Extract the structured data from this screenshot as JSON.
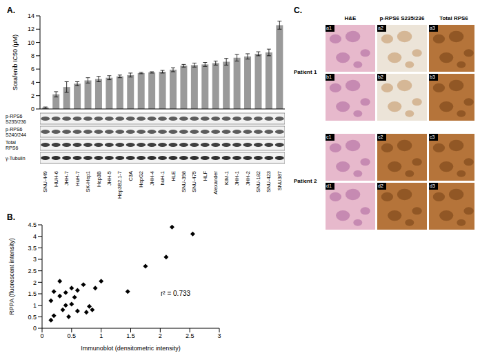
{
  "chart_data": [
    {
      "type": "bar",
      "title": "A.",
      "y_label": "Sorafenib IC50 (μM)",
      "categories": [
        "SNU-449",
        "HUH-6",
        "JHH-7",
        "HuH-7",
        "SK-Hep1",
        "Hep3B",
        "JHH-5",
        "Hep3B2.1-7",
        "C3A",
        "HepG2",
        "JHH-4",
        "huH-1",
        "HLE",
        "SNU-398",
        "SNU-475",
        "HLF",
        "Alexander",
        "KIM-1",
        "JHH-1",
        "JHH-2",
        "SNU-182",
        "SNU-423",
        "SNU387"
      ],
      "values": [
        0.2,
        2.2,
        3.3,
        3.8,
        4.3,
        4.5,
        4.7,
        4.9,
        5.1,
        5.4,
        5.5,
        5.6,
        5.9,
        6.5,
        6.6,
        6.7,
        6.9,
        7.1,
        7.7,
        7.9,
        8.3,
        8.5,
        12.6
      ],
      "errors": [
        0.1,
        0.4,
        0.8,
        0.3,
        0.4,
        0.4,
        0.3,
        0.2,
        0.3,
        0.1,
        0.1,
        0.2,
        0.3,
        0.2,
        0.3,
        0.3,
        0.3,
        0.5,
        0.5,
        0.4,
        0.3,
        0.5,
        0.6
      ],
      "color": "#9a9a9a",
      "ylim": [
        0,
        14
      ],
      "yticks": [
        0,
        2,
        4,
        6,
        8,
        10,
        12,
        14
      ],
      "grid": false
    },
    {
      "type": "scatter",
      "title": "B.",
      "x_label": "Immunoblot (densitometric intensity)",
      "y_label": "RPPA (fluorescent intensity)",
      "annotation": "r² = 0.733",
      "x": [
        0.15,
        0.15,
        0.2,
        0.2,
        0.3,
        0.3,
        0.35,
        0.4,
        0.4,
        0.45,
        0.5,
        0.5,
        0.55,
        0.6,
        0.6,
        0.7,
        0.75,
        0.8,
        0.85,
        0.9,
        1.0,
        1.45,
        1.75,
        2.1,
        2.2,
        2.55
      ],
      "values": [
        0.35,
        1.2,
        1.6,
        0.55,
        2.05,
        1.4,
        0.8,
        1.0,
        1.55,
        0.5,
        1.75,
        1.05,
        1.35,
        1.65,
        0.75,
        1.9,
        0.7,
        0.95,
        0.8,
        1.75,
        2.05,
        1.6,
        2.7,
        3.1,
        4.4,
        4.1
      ],
      "color": "#000000",
      "marker": "diamond",
      "xlim": [
        0,
        3
      ],
      "xticks": [
        0,
        0.5,
        1,
        1.5,
        2,
        2.5,
        3
      ],
      "ylim": [
        0,
        4.5
      ],
      "yticks": [
        0,
        0.5,
        1,
        1.5,
        2,
        2.5,
        3,
        3.5,
        4,
        4.5
      ],
      "grid": false
    }
  ],
  "blots": {
    "rows": [
      "p-RPS6 S235/236",
      "p-RPS6 S240/244",
      "Total RPS6",
      "γ-Tubulin"
    ]
  },
  "histology": {
    "title": "C.",
    "columns": [
      "H&E",
      "p-RPS6 S235/236",
      "Total RPS6"
    ],
    "patients": [
      {
        "label": "Patient 1",
        "rows": [
          [
            "a1",
            "a2",
            "a3"
          ],
          [
            "b1",
            "b2",
            "b3"
          ]
        ]
      },
      {
        "label": "Patient 2",
        "rows": [
          [
            "c1",
            "c2",
            "c3"
          ],
          [
            "d1",
            "d2",
            "d3"
          ]
        ]
      }
    ]
  }
}
